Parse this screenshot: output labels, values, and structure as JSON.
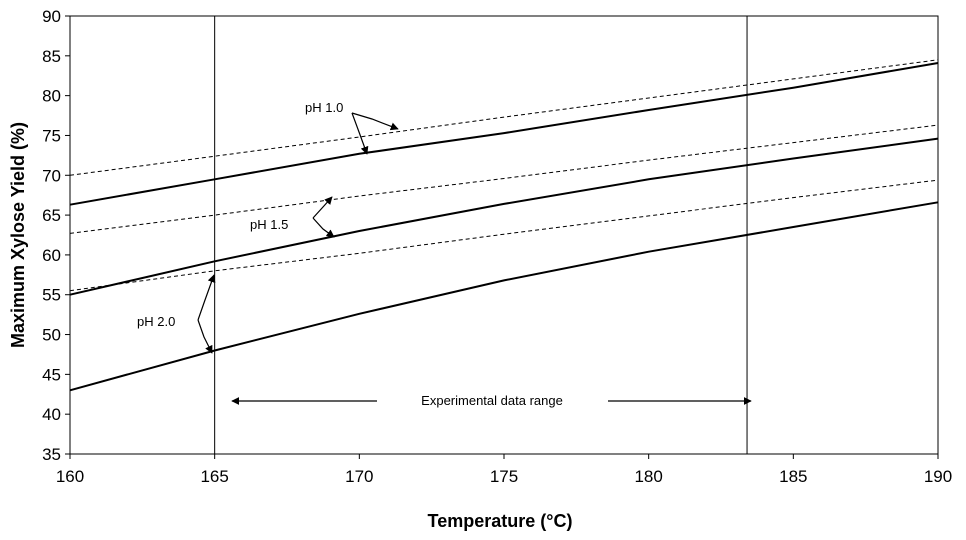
{
  "chart_data": {
    "type": "line",
    "title": "",
    "xlabel": "Temperature (°C)",
    "ylabel": "Maximum Xylose Yield (%)",
    "xlim": [
      160,
      190
    ],
    "ylim": [
      35,
      90
    ],
    "xticks": [
      160,
      165,
      170,
      175,
      180,
      185,
      190
    ],
    "yticks": [
      35,
      40,
      45,
      50,
      55,
      60,
      65,
      70,
      75,
      80,
      85,
      90
    ],
    "grid": false,
    "series": [
      {
        "group": "pH 1.0",
        "style": "dashed",
        "x": [
          160,
          165,
          170,
          175,
          180,
          185,
          190
        ],
        "y": [
          70.0,
          72.4,
          74.8,
          77.3,
          79.7,
          82.1,
          84.5
        ]
      },
      {
        "group": "pH 1.0",
        "style": "solid",
        "x": [
          160,
          165,
          170,
          175,
          180,
          185,
          190
        ],
        "y": [
          66.3,
          69.5,
          72.7,
          75.3,
          78.2,
          81.0,
          84.1
        ]
      },
      {
        "group": "pH 1.5",
        "style": "dashed",
        "x": [
          160,
          165,
          170,
          175,
          180,
          185,
          190
        ],
        "y": [
          62.7,
          65.0,
          67.4,
          69.6,
          71.9,
          74.1,
          76.3
        ]
      },
      {
        "group": "pH 1.5",
        "style": "solid",
        "x": [
          160,
          165,
          170,
          175,
          180,
          185,
          190
        ],
        "y": [
          55.0,
          59.2,
          63.0,
          66.4,
          69.5,
          72.1,
          74.6
        ]
      },
      {
        "group": "pH 2.0",
        "style": "dashed",
        "x": [
          160,
          165,
          170,
          175,
          180,
          185,
          190
        ],
        "y": [
          55.5,
          58.0,
          60.2,
          62.6,
          64.9,
          67.2,
          69.4
        ]
      },
      {
        "group": "pH 2.0",
        "style": "solid",
        "x": [
          160,
          165,
          170,
          175,
          180,
          185,
          190
        ],
        "y": [
          43.0,
          48.0,
          52.6,
          56.8,
          60.4,
          63.5,
          66.6
        ]
      }
    ],
    "reference_lines_x": [
      165,
      183.4
    ],
    "annotations": {
      "ph10": "pH 1.0",
      "ph15": "pH 1.5",
      "ph20": "pH 2.0",
      "range": "Experimental data range"
    }
  }
}
